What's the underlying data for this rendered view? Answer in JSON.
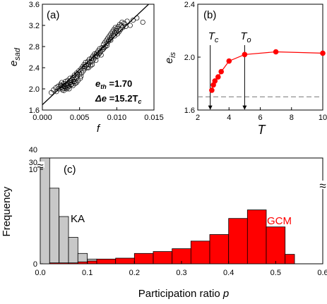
{
  "chart_data": [
    {
      "type": "scatter",
      "panel_label": "(a)",
      "xlabel": "f",
      "ylabel_main": "e",
      "ylabel_sub": "sad",
      "xlim": [
        0.0,
        0.015
      ],
      "ylim": [
        1.6,
        3.6
      ],
      "xticks": [
        "0.000",
        "0.005",
        "0.010",
        "0.015"
      ],
      "yticks": [
        "1.6",
        "2.0",
        "2.4",
        "2.8",
        "3.2",
        "3.6"
      ],
      "fit_line": {
        "intercept": 1.7,
        "slope": 133.0
      },
      "annotation_1_main": "e",
      "annotation_1_sub": "th",
      "annotation_1_value": " =1.70",
      "annotation_2_main": "Δe",
      "annotation_2_value": " =15.2T",
      "annotation_2_sub": "c",
      "points": [
        [
          0.0012,
          1.93
        ],
        [
          0.0015,
          1.98
        ],
        [
          0.0018,
          2.02
        ],
        [
          0.0019,
          1.95
        ],
        [
          0.0021,
          2.05
        ],
        [
          0.0022,
          2.0
        ],
        [
          0.0024,
          2.08
        ],
        [
          0.0025,
          2.02
        ],
        [
          0.0026,
          2.12
        ],
        [
          0.0027,
          1.98
        ],
        [
          0.0028,
          2.06
        ],
        [
          0.0029,
          2.1
        ],
        [
          0.003,
          2.04
        ],
        [
          0.0031,
          2.14
        ],
        [
          0.0032,
          2.08
        ],
        [
          0.0033,
          2.0
        ],
        [
          0.0034,
          2.16
        ],
        [
          0.0035,
          2.1
        ],
        [
          0.0036,
          2.05
        ],
        [
          0.0037,
          2.2
        ],
        [
          0.0038,
          2.12
        ],
        [
          0.0039,
          2.08
        ],
        [
          0.004,
          2.18
        ],
        [
          0.0041,
          2.22
        ],
        [
          0.0042,
          2.14
        ],
        [
          0.0043,
          2.26
        ],
        [
          0.0044,
          2.1
        ],
        [
          0.0045,
          2.2
        ],
        [
          0.0046,
          2.3
        ],
        [
          0.0047,
          2.24
        ],
        [
          0.0048,
          2.16
        ],
        [
          0.0049,
          2.34
        ],
        [
          0.005,
          2.28
        ],
        [
          0.0051,
          2.2
        ],
        [
          0.0052,
          2.38
        ],
        [
          0.0053,
          2.3
        ],
        [
          0.0054,
          2.42
        ],
        [
          0.0055,
          2.34
        ],
        [
          0.0056,
          2.46
        ],
        [
          0.0057,
          2.38
        ],
        [
          0.0058,
          2.5
        ],
        [
          0.0059,
          2.44
        ],
        [
          0.006,
          2.4
        ],
        [
          0.0061,
          2.52
        ],
        [
          0.0062,
          2.46
        ],
        [
          0.0063,
          2.56
        ],
        [
          0.0064,
          2.5
        ],
        [
          0.0065,
          2.44
        ],
        [
          0.0066,
          2.58
        ],
        [
          0.0067,
          2.52
        ],
        [
          0.0068,
          2.62
        ],
        [
          0.0069,
          2.56
        ],
        [
          0.007,
          2.66
        ],
        [
          0.0071,
          2.6
        ],
        [
          0.0072,
          2.54
        ],
        [
          0.0073,
          2.68
        ],
        [
          0.0074,
          2.62
        ],
        [
          0.0075,
          2.72
        ],
        [
          0.0076,
          2.66
        ],
        [
          0.0077,
          2.76
        ],
        [
          0.0078,
          2.7
        ],
        [
          0.0079,
          2.64
        ],
        [
          0.008,
          2.78
        ],
        [
          0.0081,
          2.74
        ],
        [
          0.0082,
          2.84
        ],
        [
          0.0083,
          2.78
        ],
        [
          0.0084,
          2.88
        ],
        [
          0.0085,
          2.8
        ],
        [
          0.0086,
          2.92
        ],
        [
          0.0087,
          2.86
        ],
        [
          0.0088,
          2.96
        ],
        [
          0.0089,
          2.9
        ],
        [
          0.009,
          3.0
        ],
        [
          0.0091,
          2.94
        ],
        [
          0.0092,
          3.04
        ],
        [
          0.0093,
          2.98
        ],
        [
          0.0094,
          3.08
        ],
        [
          0.0095,
          3.02
        ],
        [
          0.0096,
          3.12
        ],
        [
          0.0097,
          3.06
        ],
        [
          0.0098,
          3.16
        ],
        [
          0.0099,
          3.1
        ],
        [
          0.01,
          3.14
        ],
        [
          0.0101,
          3.04
        ],
        [
          0.0102,
          3.18
        ],
        [
          0.0103,
          3.08
        ],
        [
          0.0104,
          3.22
        ],
        [
          0.0105,
          3.12
        ],
        [
          0.0106,
          3.2
        ],
        [
          0.0107,
          3.26
        ],
        [
          0.0108,
          3.16
        ],
        [
          0.011,
          3.24
        ],
        [
          0.0112,
          3.18
        ],
        [
          0.0114,
          3.28
        ],
        [
          0.0118,
          3.2
        ],
        [
          0.0122,
          3.3
        ],
        [
          0.0127,
          3.34
        ],
        [
          0.0135,
          3.26
        ],
        [
          0.0028,
          2.01
        ],
        [
          0.0033,
          2.06
        ],
        [
          0.0038,
          2.15
        ],
        [
          0.0043,
          2.18
        ],
        [
          0.0047,
          2.28
        ],
        [
          0.0052,
          2.24
        ],
        [
          0.0057,
          2.42
        ],
        [
          0.0062,
          2.4
        ],
        [
          0.0067,
          2.46
        ],
        [
          0.0072,
          2.64
        ],
        [
          0.0077,
          2.68
        ],
        [
          0.0082,
          2.76
        ],
        [
          0.0087,
          2.82
        ],
        [
          0.0092,
          2.92
        ],
        [
          0.0097,
          3.0
        ],
        [
          0.0034,
          2.03
        ],
        [
          0.0039,
          2.09
        ],
        [
          0.0044,
          2.14
        ],
        [
          0.0029,
          1.97
        ],
        [
          0.0036,
          2.0
        ],
        [
          0.0041,
          2.06
        ],
        [
          0.0046,
          2.12
        ],
        [
          0.0025,
          2.06
        ],
        [
          0.0031,
          2.01
        ]
      ]
    },
    {
      "type": "line",
      "panel_label": "(b)",
      "xlabel": "T",
      "ylabel_main": "e",
      "ylabel_sub": "is",
      "xlim": [
        2,
        10
      ],
      "ylim": [
        1.6,
        2.4
      ],
      "xticks": [
        "2",
        "4",
        "6",
        "8",
        "10"
      ],
      "yticks": [
        "1.6",
        "2.0",
        "2.4"
      ],
      "x": [
        2.9,
        3.0,
        3.1,
        3.3,
        3.5,
        4.0,
        5.0,
        7.0,
        10.0
      ],
      "y": [
        1.75,
        1.79,
        1.82,
        1.85,
        1.89,
        1.97,
        2.02,
        2.04,
        2.03
      ],
      "dashed_level": 1.7,
      "marker_1_main": "T",
      "marker_1_sub": "c",
      "marker_1_x": 2.8,
      "marker_2_main": "T",
      "marker_2_sub": "o",
      "marker_2_x": 5.0,
      "color": "#ff0000"
    },
    {
      "type": "bar",
      "panel_label": "(c)",
      "xlabel": "Participation ratio ",
      "xlabel_var": "p",
      "ylabel": "Frequency",
      "xlim": [
        0.0,
        0.6
      ],
      "xticks": [
        "0.0",
        "0.1",
        "0.2",
        "0.3",
        "0.4",
        "0.5",
        "0.6"
      ],
      "yticks_lower": [
        "0",
        "10"
      ],
      "yticks_upper": [
        "30",
        "40"
      ],
      "break_symbol": "≈",
      "bin_width": 0.02,
      "series": [
        {
          "name": "KA",
          "color": "#c8c8c8",
          "bin_starts": [
            0.0,
            0.02,
            0.04,
            0.06,
            0.08,
            0.1
          ],
          "values": [
            36,
            8.0,
            5.0,
            2.8,
            1.1,
            0.5
          ]
        },
        {
          "name": "GCM",
          "color": "#ff0000",
          "bin_starts": [
            0.02,
            0.06,
            0.08,
            0.1,
            0.12,
            0.16,
            0.2,
            0.24,
            0.28,
            0.32,
            0.36,
            0.4,
            0.44,
            0.48,
            0.52
          ],
          "values": [
            0.1,
            0.1,
            0.2,
            0.3,
            0.5,
            0.6,
            1.1,
            1.3,
            1.6,
            2.4,
            3.1,
            4.8,
            5.7,
            3.9,
            1.0
          ],
          "widths": [
            0.04,
            0.02,
            0.02,
            0.02,
            0.04,
            0.04,
            0.04,
            0.04,
            0.04,
            0.04,
            0.04,
            0.04,
            0.04,
            0.04,
            0.02
          ]
        }
      ]
    }
  ]
}
